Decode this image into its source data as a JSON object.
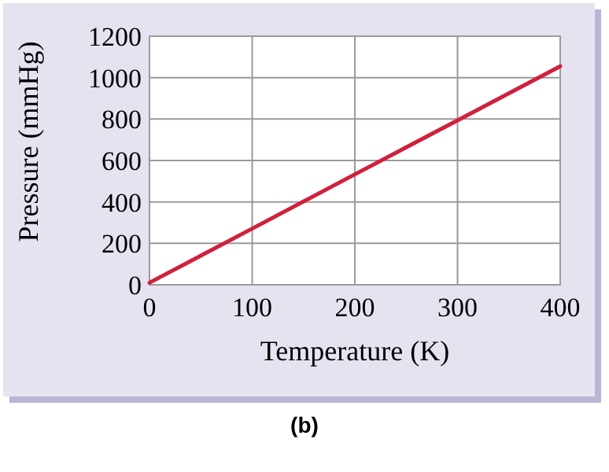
{
  "chart_data": {
    "type": "line",
    "xlabel": "Temperature (K)",
    "ylabel": "Pressure (mmHg)",
    "x": [
      0,
      100,
      200,
      300,
      400
    ],
    "series": [
      {
        "color": "#d0203c",
        "values": [
          10,
          271,
          533,
          794,
          1055
        ]
      }
    ],
    "xlim": [
      0,
      400
    ],
    "ylim": [
      0,
      1200
    ],
    "xticks": [
      0,
      100,
      200,
      300,
      400
    ],
    "yticks": [
      0,
      200,
      400,
      600,
      800,
      1000,
      1200
    ],
    "grid": true,
    "marker": "none",
    "line_style": "solid",
    "annotations": [
      "(b)"
    ]
  }
}
